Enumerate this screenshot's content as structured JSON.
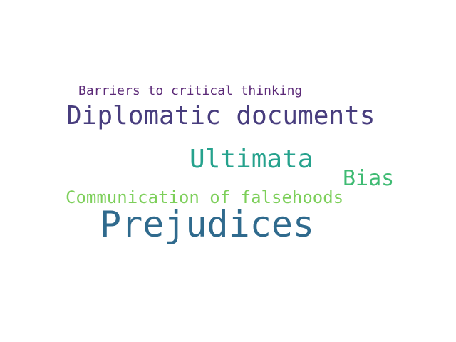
{
  "words": [
    {
      "text": "Barriers to critical thinking",
      "color": "#5c2a78"
    },
    {
      "text": "Diplomatic documents",
      "color": "#483d7e"
    },
    {
      "text": "Ultimata",
      "color": "#26a28d"
    },
    {
      "text": "Bias",
      "color": "#3fbb73"
    },
    {
      "text": "Communication of falsehoods",
      "color": "#7dcf5a"
    },
    {
      "text": "Prejudices",
      "color": "#2f6a8d"
    }
  ]
}
